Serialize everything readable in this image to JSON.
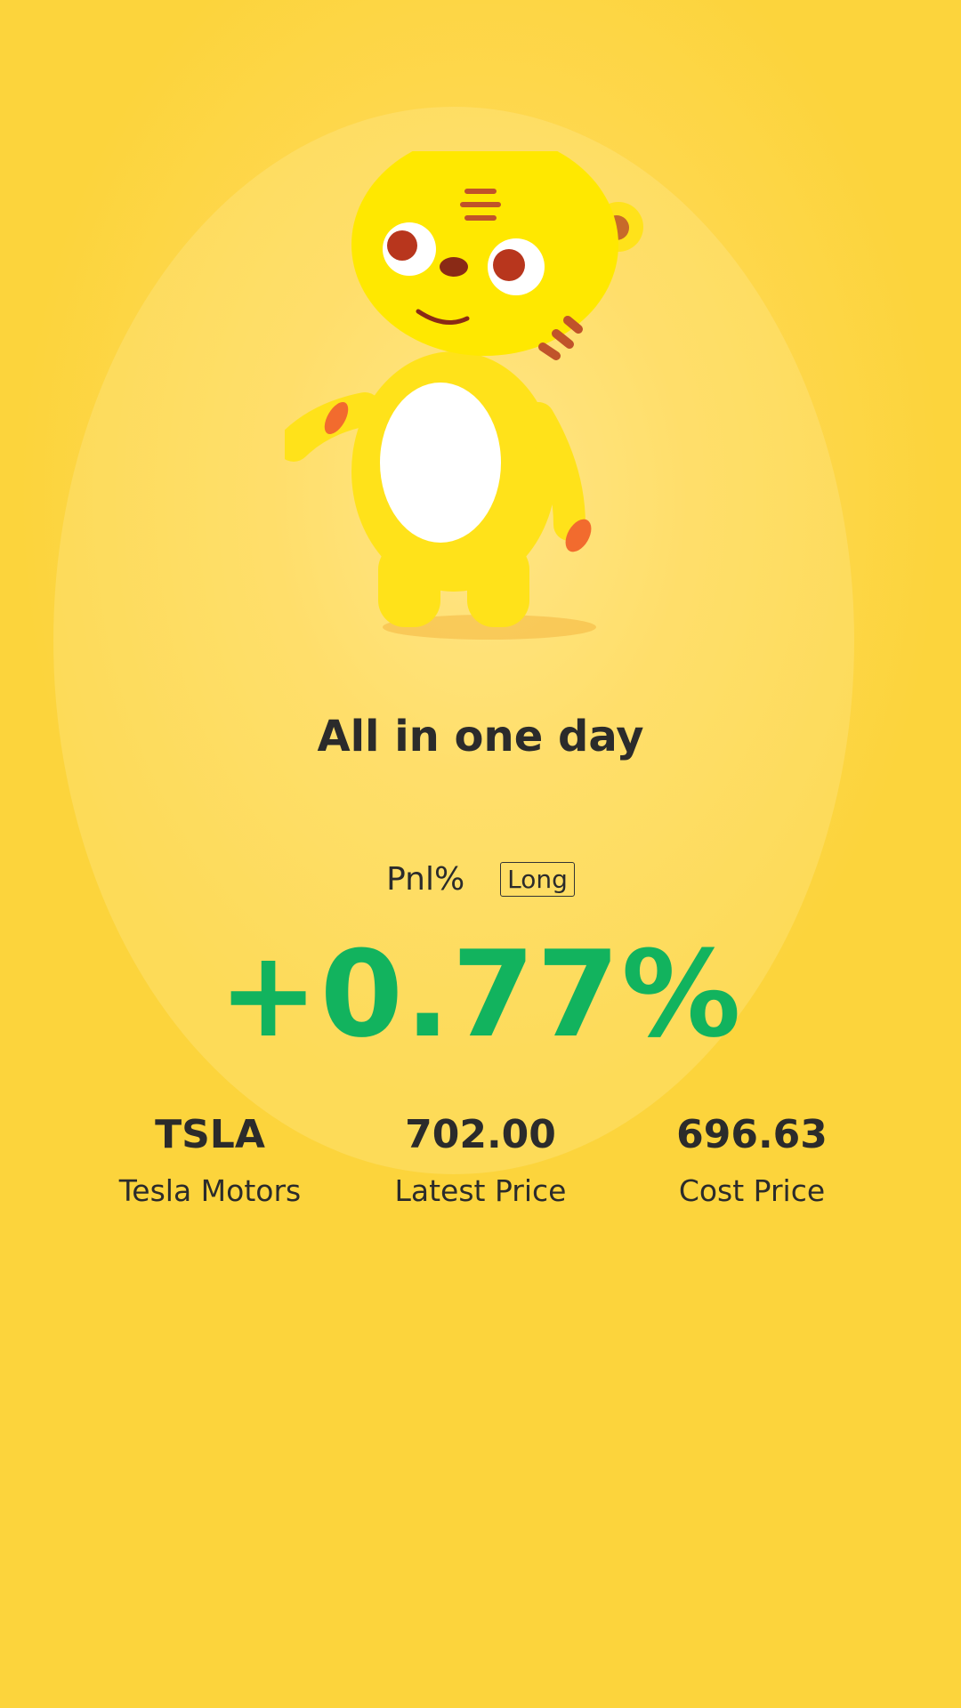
{
  "title": "All in one day",
  "pnl": {
    "label": "Pnl%",
    "direction": "Long",
    "value": "+0.77%",
    "color": "#12b35e"
  },
  "stats": [
    {
      "value": "TSLA",
      "label": "Tesla Motors"
    },
    {
      "value": "702.00",
      "label": "Latest Price"
    },
    {
      "value": "696.63",
      "label": "Cost Price"
    }
  ],
  "mascot": {
    "icon": "tiger-mascot-icon"
  },
  "colors": {
    "background": "#fcd43c",
    "text": "#2b2b2b"
  }
}
